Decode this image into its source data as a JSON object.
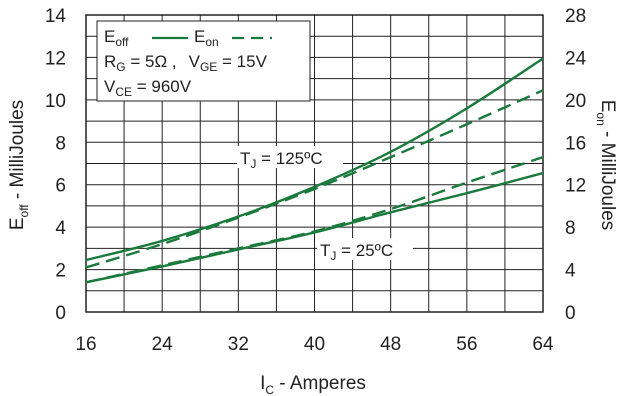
{
  "chart_data": {
    "type": "line",
    "x_axis": {
      "label": "I",
      "label_sub": "C",
      "label_rest": " - Amperes",
      "range": [
        16,
        64
      ],
      "ticks": [
        16,
        24,
        32,
        40,
        48,
        56,
        64
      ]
    },
    "y_axis_left": {
      "label": "E",
      "label_sub": "off",
      "label_rest": " - MilliJoules",
      "range": [
        0,
        14
      ],
      "ticks": [
        0,
        2,
        4,
        6,
        8,
        10,
        12,
        14
      ]
    },
    "y_axis_right": {
      "label": "E",
      "label_sub": "on",
      "label_rest": " - MilliJoules",
      "range": [
        0,
        28
      ],
      "ticks": [
        0,
        4,
        8,
        12,
        16,
        20,
        24,
        28
      ]
    },
    "grid": true,
    "legend": {
      "placement": "top-left",
      "eoff": {
        "main": "E",
        "sub": "off"
      },
      "eon": {
        "main": "E",
        "sub": "on"
      },
      "line2": {
        "rg_main": "R",
        "rg_sub": "G",
        "rg_rest": " = 5Ω ,",
        "vge_main": "V",
        "vge_sub": "GE",
        "vge_rest": " = 15V"
      },
      "line3": {
        "vce_main": "V",
        "vce_sub": "CE",
        "vce_rest": " = 960V"
      }
    },
    "annotations": {
      "tj125": {
        "main": "T",
        "sub": "J",
        "rest": " = 125ºC"
      },
      "tj25": {
        "main": "T",
        "sub": "J",
        "rest": " = 25ºC"
      }
    },
    "series": [
      {
        "name": "E_off (T_J = 125ºC)",
        "axis": "left",
        "dash": false,
        "x": [
          16,
          24,
          32,
          40,
          48,
          56,
          64
        ],
        "values": [
          2.45,
          3.35,
          4.5,
          5.9,
          7.55,
          9.6,
          11.95
        ]
      },
      {
        "name": "E_on (T_J = 125ºC)",
        "axis": "right",
        "dash": true,
        "x": [
          16,
          24,
          32,
          40,
          48,
          56,
          64
        ],
        "values": [
          4.2,
          6.4,
          8.9,
          11.6,
          14.6,
          17.7,
          20.9
        ]
      },
      {
        "name": "E_off (T_J = 25ºC)",
        "axis": "left",
        "dash": false,
        "x": [
          16,
          24,
          32,
          40,
          48,
          56,
          64
        ],
        "values": [
          1.4,
          2.15,
          2.95,
          3.75,
          4.7,
          5.6,
          6.55
        ]
      },
      {
        "name": "E_on (T_J = 25ºC)",
        "axis": "right",
        "dash": true,
        "x": [
          16,
          24,
          32,
          40,
          48,
          56,
          64
        ],
        "values": [
          2.8,
          4.4,
          6.0,
          7.6,
          9.7,
          12.2,
          14.6
        ]
      }
    ],
    "colors": {
      "line": "#1a7a3c",
      "grid": "#222222"
    }
  }
}
